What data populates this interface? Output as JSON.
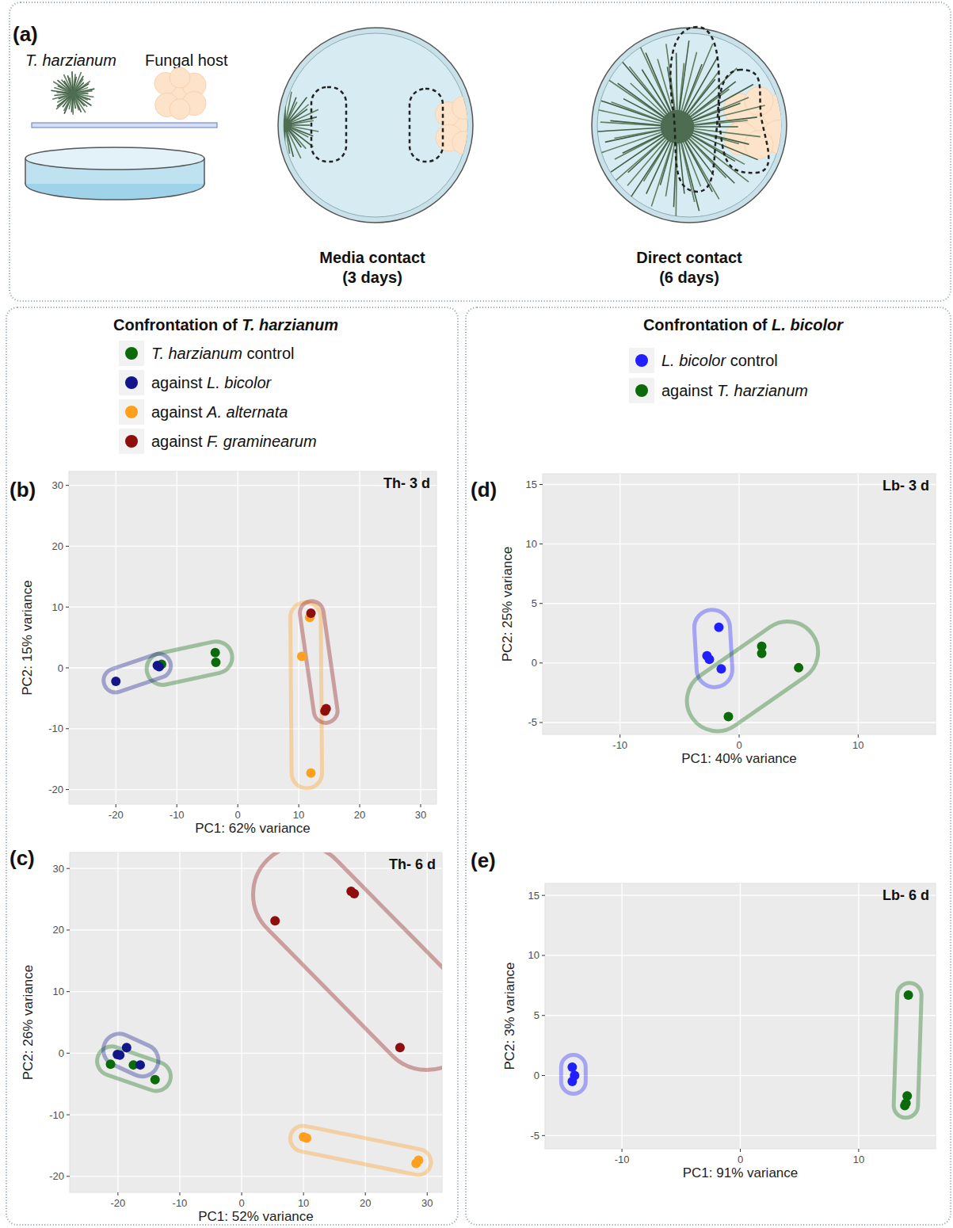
{
  "figure_a": {
    "letter": "(a)",
    "organism_labels": [
      "T. harzianum",
      "Fungal host"
    ],
    "stages": [
      {
        "label": "Media contact",
        "duration": "(3 days)"
      },
      {
        "label": "Direct contact",
        "duration": "(6 days)"
      }
    ]
  },
  "chart_data": [
    {
      "type": "scatter",
      "panel_label": "(b)",
      "title": "Th- 3 d",
      "legend_title": "Confrontation of T. harzianum",
      "legend": "top",
      "x_label": "PC1: 62% variance",
      "y_label": "PC2: 15% variance",
      "xlim": [
        -27.7,
        32.6
      ],
      "ylim": [
        -22.4,
        32.3
      ],
      "xticks": [
        -20,
        -10,
        0,
        10,
        20,
        30
      ],
      "yticks": [
        -20,
        -10,
        0,
        10,
        20,
        30
      ],
      "grid": true,
      "series": [
        {
          "name": "T. harzianum control",
          "color": "#0b6b0b",
          "x": [
            -12.5,
            -3.7,
            -3.6
          ],
          "values": [
            0.6,
            2.5,
            0.9
          ]
        },
        {
          "name": "against L. bicolor",
          "color": "#12168a",
          "x": [
            -20,
            -13.2,
            -12.9
          ],
          "values": [
            -2.2,
            0.4,
            0.2
          ]
        },
        {
          "name": "against A. alternata",
          "color": "#ff9f1c",
          "x": [
            11.8,
            10.5,
            12
          ],
          "values": [
            8.3,
            1.9,
            -17.3
          ]
        },
        {
          "name": "against F. graminearum",
          "color": "#8f0d0d",
          "x": [
            12,
            14.5,
            14.3
          ],
          "values": [
            9,
            -6.7,
            -7.1
          ]
        }
      ]
    },
    {
      "type": "scatter",
      "panel_label": "(c)",
      "title": "Th- 6 d",
      "x_label": "PC1: 52% variance",
      "y_label": "PC2: 26% variance",
      "xlim": [
        -27.8,
        32.4
      ],
      "ylim": [
        -22.6,
        32.6
      ],
      "xticks": [
        -20,
        -10,
        0,
        10,
        20,
        30
      ],
      "yticks": [
        -20,
        -10,
        0,
        10,
        20,
        30
      ],
      "grid": true,
      "series": [
        {
          "color": "#0b6b0b",
          "x": [
            -21.2,
            -17.5,
            -14
          ],
          "values": [
            -1.8,
            -1.9,
            -4.3
          ]
        },
        {
          "color": "#12168a",
          "x": [
            -18.6,
            -20.1,
            -19.7,
            -16.4
          ],
          "values": [
            0.9,
            -0.2,
            -0.3,
            -1.9
          ]
        },
        {
          "color": "#ff9f1c",
          "x": [
            10,
            10.5,
            28.2,
            28.6
          ],
          "values": [
            -13.6,
            -13.8,
            -17.9,
            -17.4
          ]
        },
        {
          "color": "#8f0d0d",
          "x": [
            5.4,
            17.7,
            18.2,
            25.6
          ],
          "values": [
            21.5,
            26.3,
            25.9,
            0.9
          ]
        }
      ]
    },
    {
      "type": "scatter",
      "panel_label": "(d)",
      "title": "Lb- 3 d",
      "legend_title": "Confrontation of L. bicolor",
      "legend": "top",
      "x_label": "PC1: 40% variance",
      "y_label": "PC2: 25% variance",
      "xlim": [
        -16.5,
        16.5
      ],
      "ylim": [
        -6,
        15.9
      ],
      "xticks": [
        -10,
        0,
        10
      ],
      "yticks": [
        -5,
        0,
        5,
        10,
        15
      ],
      "grid": true,
      "series": [
        {
          "name": "L. bicolor control",
          "color": "#1f1fff",
          "x": [
            -1.7,
            -2.7,
            -2.5,
            -1.5
          ],
          "values": [
            3,
            0.6,
            0.3,
            -0.5
          ]
        },
        {
          "name": "against T. harzianum",
          "color": "#0b6b0b",
          "x": [
            1.9,
            1.9,
            5,
            -0.9
          ],
          "values": [
            1.4,
            0.8,
            -0.4,
            -4.5
          ]
        }
      ]
    },
    {
      "type": "scatter",
      "panel_label": "(e)",
      "title": "Lb- 6 d",
      "x_label": "PC1: 91% variance",
      "y_label": "PC2: 3% variance",
      "xlim": [
        -16.5,
        16.5
      ],
      "ylim": [
        -6.1,
        16
      ],
      "xticks": [
        -10,
        0,
        10
      ],
      "yticks": [
        -5,
        0,
        5,
        10,
        15
      ],
      "grid": true,
      "series": [
        {
          "color": "#1f1fff",
          "x": [
            -14.2,
            -14,
            -14.2
          ],
          "values": [
            0.7,
            0,
            -0.5
          ]
        },
        {
          "color": "#0b6b0b",
          "x": [
            14.2,
            14.1,
            14,
            13.9
          ],
          "values": [
            6.7,
            -1.7,
            -2.3,
            -2.5
          ]
        }
      ]
    }
  ]
}
